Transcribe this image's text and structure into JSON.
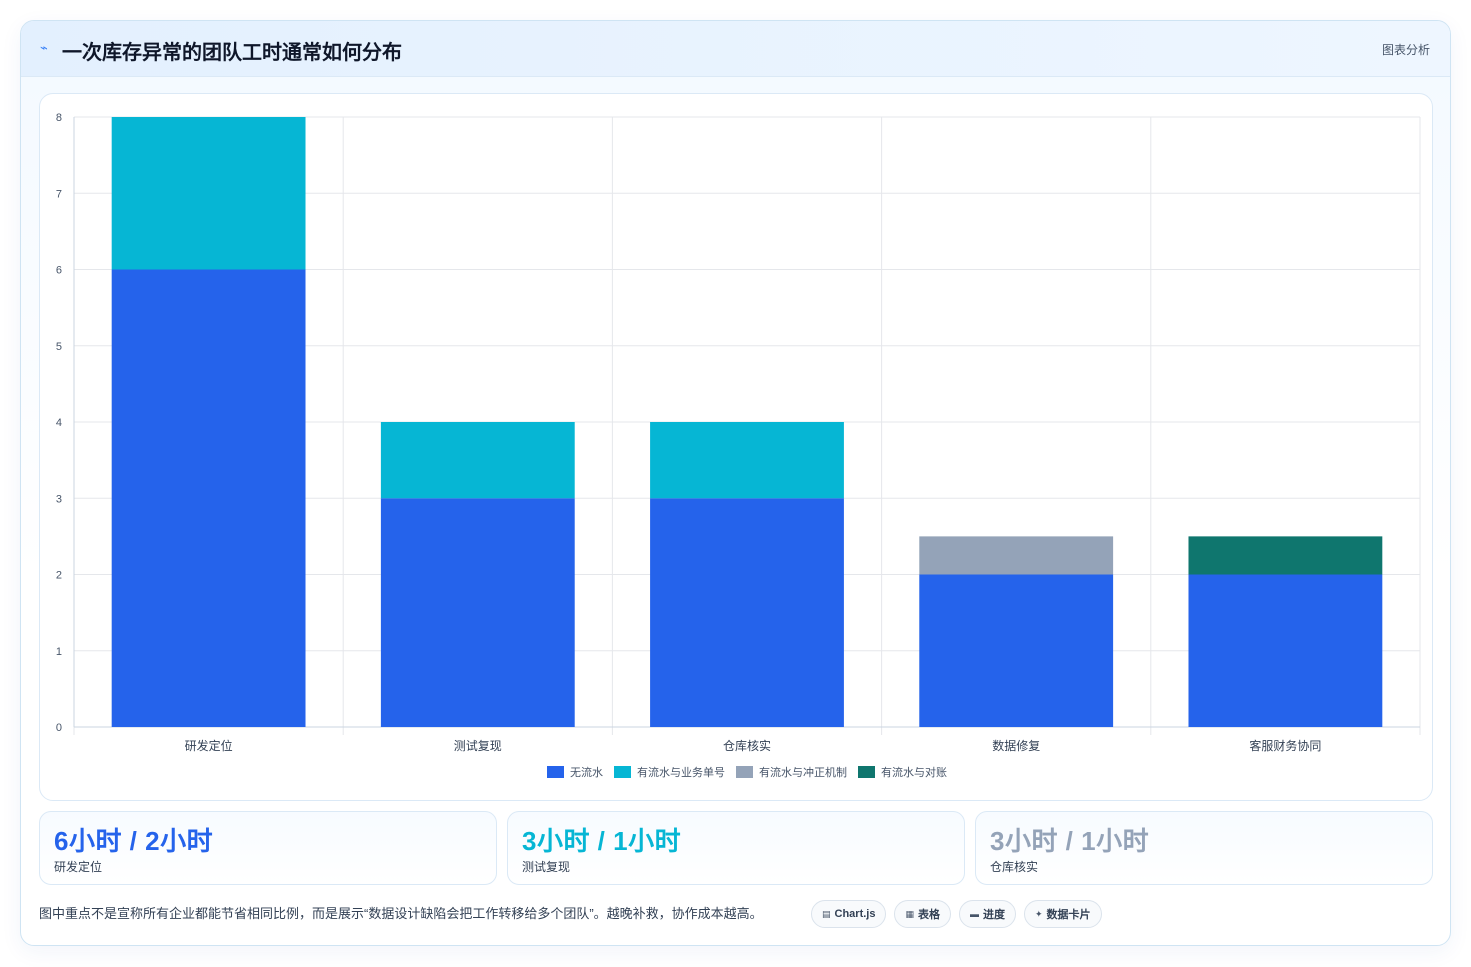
{
  "header": {
    "icon": "lightning-icon",
    "title": "一次库存异常的团队工时通常如何分布",
    "tag": "图表分析"
  },
  "chart_data": {
    "type": "bar",
    "stacked": true,
    "categories": [
      "研发定位",
      "测试复现",
      "仓库核实",
      "数据修复",
      "客服财务协同"
    ],
    "series": [
      {
        "name": "无流水",
        "color": "#2563eb",
        "values": [
          6,
          3,
          3,
          2,
          2
        ]
      },
      {
        "name": "有流水与业务单号",
        "color": "#06b6d4",
        "values": [
          2,
          1,
          1,
          0,
          0
        ]
      },
      {
        "name": "有流水与冲正机制",
        "color": "#94a3b8",
        "values": [
          0,
          0,
          0,
          0.5,
          0
        ]
      },
      {
        "name": "有流水与对账",
        "color": "#0f766e",
        "values": [
          0,
          0,
          0,
          0,
          0.5
        ]
      }
    ],
    "ylim": [
      0,
      8
    ],
    "yticks": [
      "0",
      "1",
      "2",
      "3",
      "4",
      "5",
      "6",
      "7",
      "8"
    ],
    "grid": true,
    "legend": "bottom"
  },
  "kpis": [
    {
      "value": "6小时 / 2小时",
      "label": "研发定位",
      "color": "#2563eb"
    },
    {
      "value": "3小时 / 1小时",
      "label": "测试复现",
      "color": "#06b6d4"
    },
    {
      "value": "3小时 / 1小时",
      "label": "仓库核实",
      "color": "#94a3b8"
    }
  ],
  "footer": {
    "note": "图中重点不是宣称所有企业都能节省相同比例，而是展示“数据设计缺陷会把工作转移给多个团队”。越晚补救，协作成本越高。",
    "pills": [
      {
        "icon": "chart-icon",
        "glyph": "▤",
        "label": "Chart.js"
      },
      {
        "icon": "table-icon",
        "glyph": "▦",
        "label": "表格"
      },
      {
        "icon": "progress-icon",
        "glyph": "▬",
        "label": "进度"
      },
      {
        "icon": "sparkle-icon",
        "glyph": "✦",
        "label": "数据卡片"
      }
    ]
  }
}
